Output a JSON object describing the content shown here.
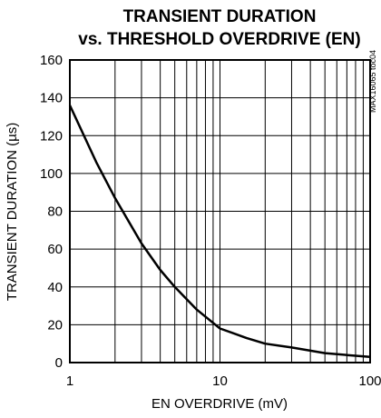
{
  "chart_data": {
    "type": "line",
    "title_line1": "TRANSIENT DURATION",
    "title_line2": "vs. THRESHOLD OVERDRIVE (EN)",
    "xlabel": "EN OVERDRIVE (mV)",
    "ylabel": "TRANSIENT DURATION (µs)",
    "part_code": "MAX16065 toc04",
    "x_scale": "log",
    "xlim": [
      1,
      100
    ],
    "ylim": [
      0,
      160
    ],
    "x_ticks": [
      1,
      10,
      100
    ],
    "x_tick_labels": [
      "1",
      "10",
      "100"
    ],
    "y_ticks": [
      0,
      20,
      40,
      60,
      80,
      100,
      120,
      140,
      160
    ],
    "y_tick_labels": [
      "0",
      "20",
      "40",
      "60",
      "80",
      "100",
      "120",
      "140",
      "160"
    ],
    "grid": true,
    "series": [
      {
        "x": [
          1,
          1.5,
          2,
          3,
          4,
          5,
          7,
          10,
          15,
          20,
          30,
          50,
          70,
          100
        ],
        "y": [
          136,
          106,
          87,
          63,
          49,
          40,
          28,
          18,
          13,
          10,
          8,
          5,
          4,
          3
        ]
      }
    ]
  }
}
